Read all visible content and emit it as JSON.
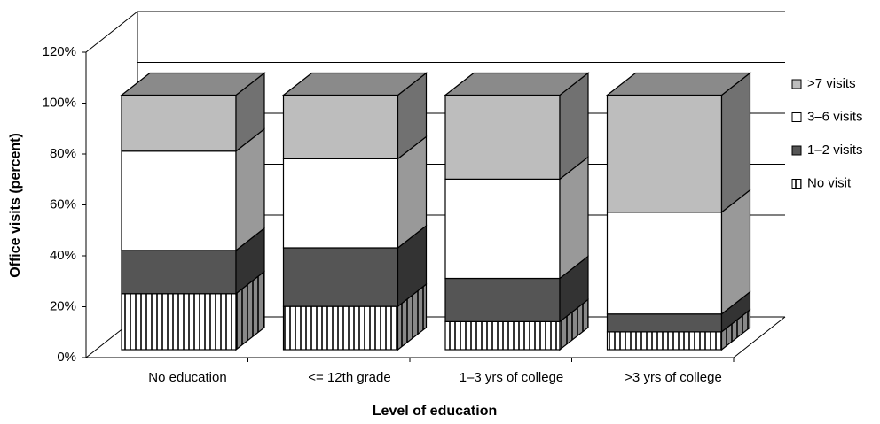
{
  "chart_data": {
    "type": "bar3d_stacked",
    "x_label": "Level of education",
    "y_label": "Office visits (percent)",
    "categories": [
      "No education",
      "<= 12th grade",
      "1–3 yrs of college",
      ">3 yrs of college"
    ],
    "series": [
      {
        "name": "No visit",
        "color": "#ffffff",
        "hatch": "vertical",
        "values": [
          22,
          17,
          11,
          7
        ]
      },
      {
        "name": "1–2 visits",
        "color": "#555555",
        "values": [
          17,
          23,
          17,
          7
        ]
      },
      {
        "name": "3–6 visits",
        "color": "#ffffff",
        "values": [
          39,
          35,
          39,
          40
        ]
      },
      {
        "name": ">7 visits",
        "color": "#bdbdbd",
        "values": [
          22,
          25,
          33,
          46
        ]
      }
    ],
    "ylim": [
      0,
      120
    ],
    "yticks": [
      {
        "value": 0,
        "label": "0%"
      },
      {
        "value": 20,
        "label": "20%"
      },
      {
        "value": 40,
        "label": "40%"
      },
      {
        "value": 60,
        "label": "60%"
      },
      {
        "value": 80,
        "label": "80%"
      },
      {
        "value": 100,
        "label": "100%"
      },
      {
        "value": 120,
        "label": "120%"
      }
    ],
    "grid": true,
    "legend": "right"
  }
}
